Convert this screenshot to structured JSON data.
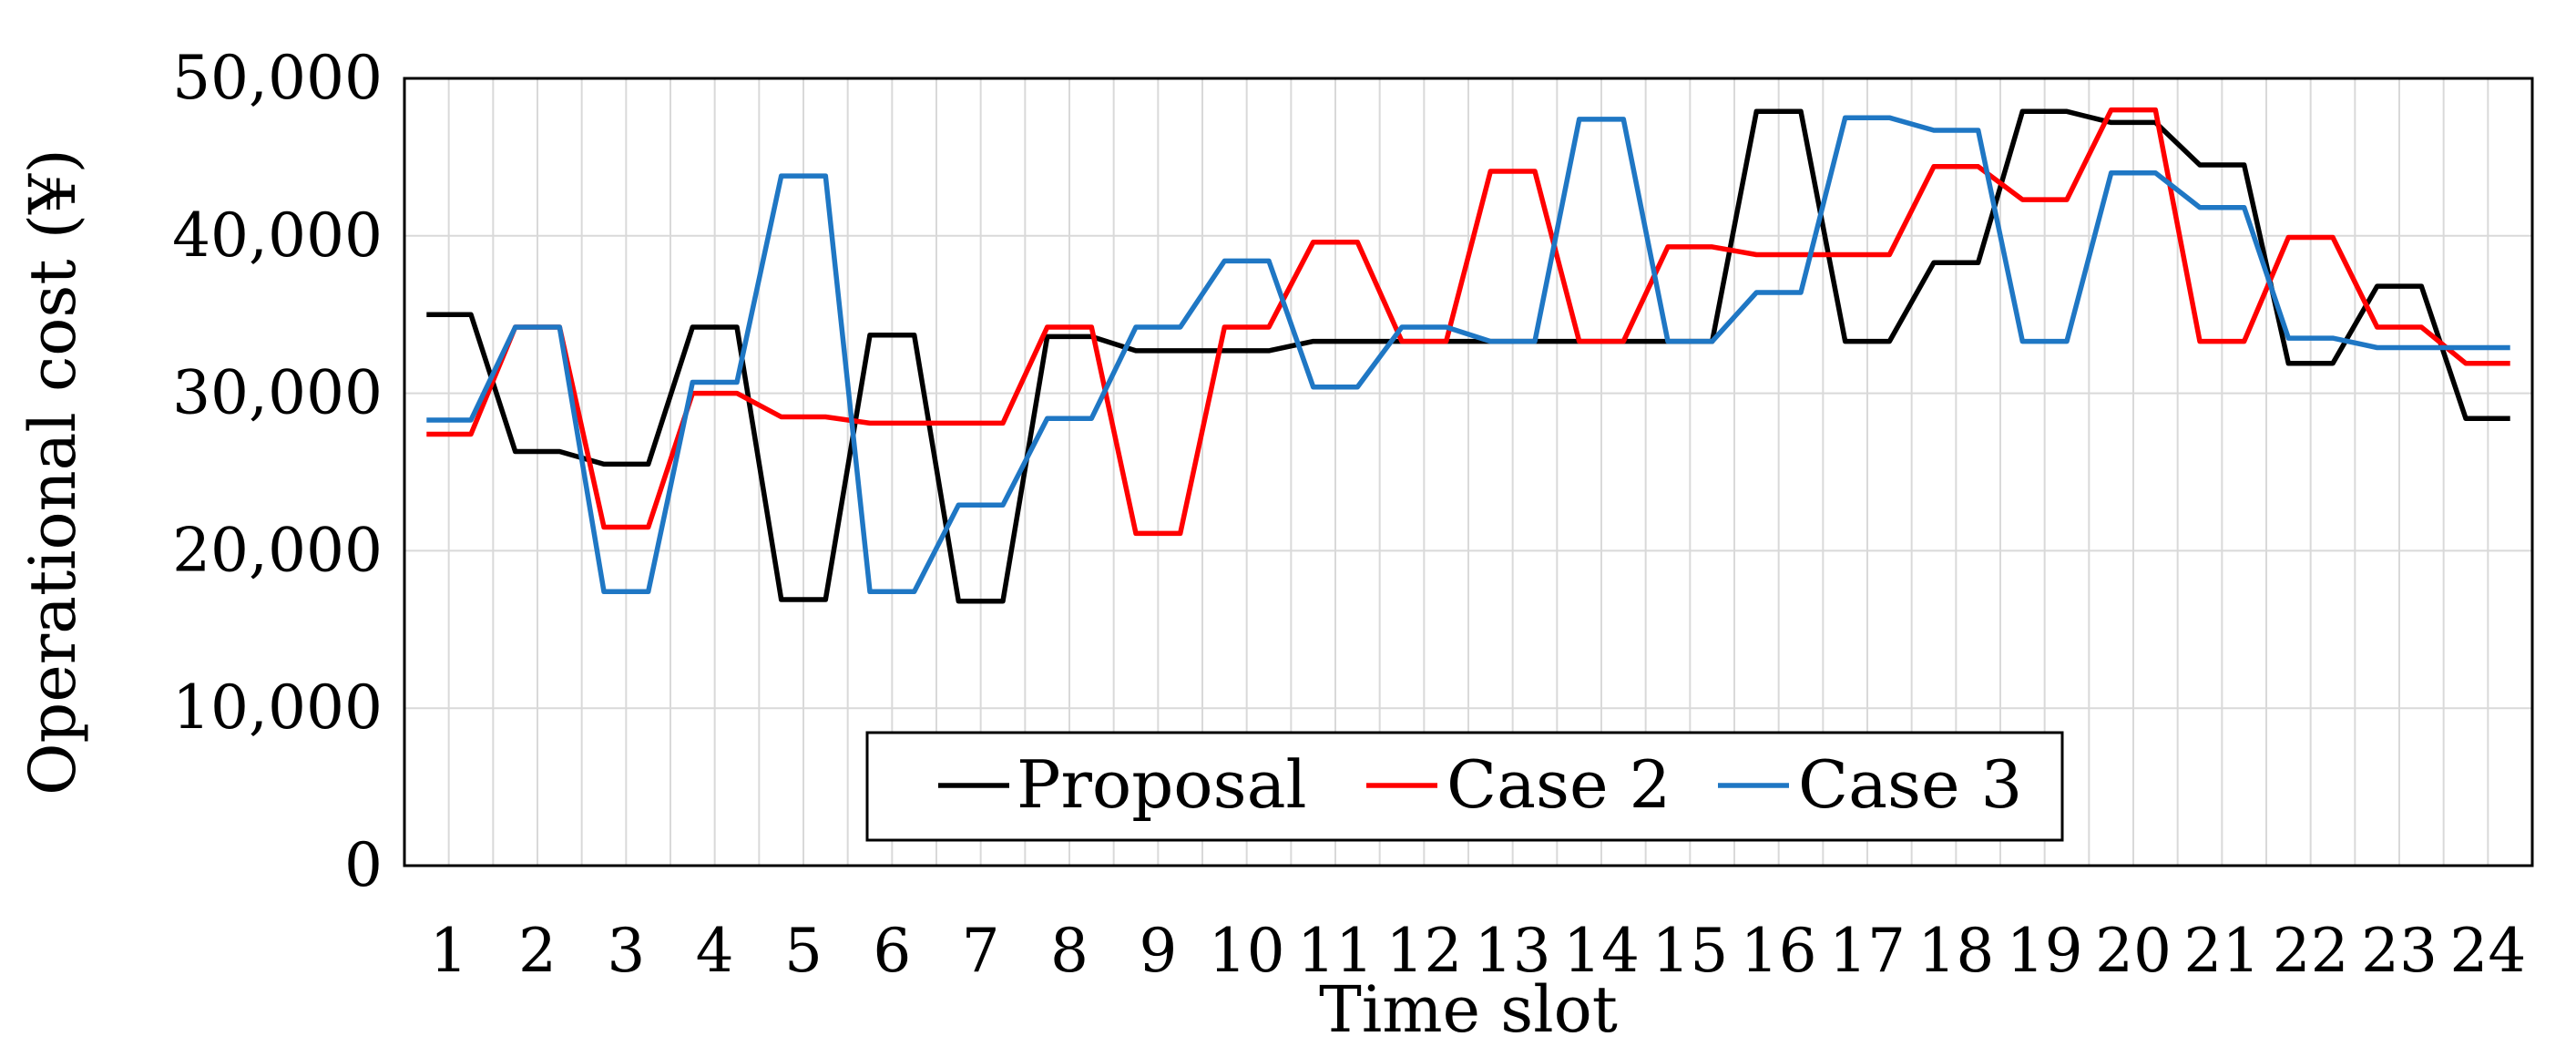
{
  "chart_data": {
    "type": "line",
    "title": "",
    "xlabel": "Time slot",
    "ylabel": "Operational cost (¥)",
    "ylim": [
      0,
      50000
    ],
    "yticks": [
      0,
      10000,
      20000,
      30000,
      40000,
      50000
    ],
    "ytick_labels": [
      "0",
      "10,000",
      "20,000",
      "30,000",
      "40,000",
      "50,000"
    ],
    "categories": [
      "1",
      "2",
      "3",
      "4",
      "5",
      "6",
      "7",
      "8",
      "9",
      "10",
      "11",
      "12",
      "13",
      "14",
      "15",
      "16",
      "17",
      "18",
      "19",
      "20",
      "21",
      "22",
      "23",
      "24"
    ],
    "grid": true,
    "legend_position": "bottom-center",
    "series": [
      {
        "name": "Proposal",
        "color": "#000000",
        "values": [
          35000,
          26300,
          25500,
          34200,
          16900,
          33700,
          16800,
          33600,
          32700,
          32700,
          33300,
          33300,
          33300,
          33300,
          33300,
          47900,
          33300,
          38300,
          47900,
          47200,
          44500,
          31900,
          36800,
          28400
        ]
      },
      {
        "name": "Case 2",
        "color": "#ff0000",
        "values": [
          27400,
          34200,
          21500,
          30000,
          28500,
          28100,
          28100,
          34200,
          21100,
          34200,
          39600,
          33300,
          44100,
          33300,
          39300,
          38800,
          38800,
          44400,
          42300,
          48000,
          33300,
          39900,
          34200,
          31900
        ]
      },
      {
        "name": "Case 3",
        "color": "#1f77c4",
        "values": [
          28300,
          34200,
          17400,
          30700,
          43800,
          17400,
          22900,
          28400,
          34200,
          38400,
          30400,
          34200,
          33300,
          47400,
          33300,
          36400,
          47500,
          46700,
          33300,
          44000,
          41800,
          33500,
          32900,
          32900
        ]
      }
    ]
  }
}
